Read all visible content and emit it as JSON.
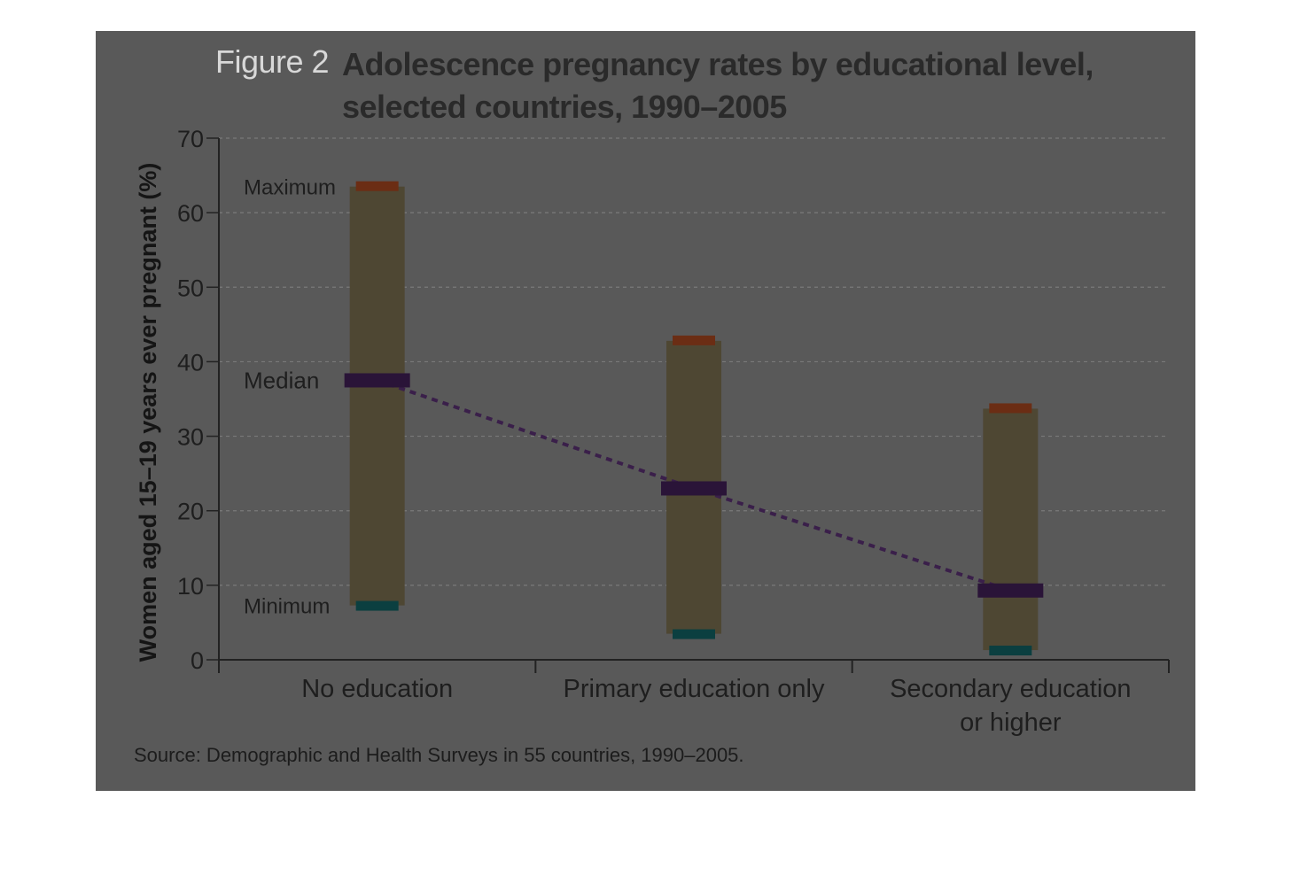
{
  "figure": {
    "prefix": "Figure 2",
    "title_line1": "Adolescence pregnancy rates by educational level,",
    "title_line2": "selected countries, 1990–2005",
    "source": "Source: Demographic and Health Surveys in 55 countries, 1990–2005."
  },
  "colors": {
    "background": "#595959",
    "range_bar": "#4e4733",
    "maximum": "#6b2d14",
    "median": "#2a1438",
    "minimum": "#0b3f40",
    "trend_line": "#3a1f4a",
    "axis": "#222222",
    "grid": "#7a7a7a",
    "tick_label": "#1e1e1e"
  },
  "chart_data": {
    "type": "range",
    "title": "Adolescence pregnancy rates by educational level, selected countries, 1990–2005",
    "ylabel": "Women aged 15–19 years ever pregnant (%)",
    "xlabel": "",
    "ylim": [
      0,
      70
    ],
    "yticks": [
      "0",
      "10",
      "20",
      "30",
      "40",
      "50",
      "60",
      "70"
    ],
    "grid": true,
    "categories": [
      {
        "label_lines": [
          "No education"
        ],
        "max": 63.5,
        "median": 37.5,
        "min": 7.3
      },
      {
        "label_lines": [
          "Primary education only"
        ],
        "max": 42.8,
        "median": 23,
        "min": 3.5
      },
      {
        "label_lines": [
          "Secondary education",
          "or higher"
        ],
        "max": 33.7,
        "median": 9.3,
        "min": 1.3
      }
    ],
    "series": [
      {
        "name": "Maximum",
        "values": [
          63.5,
          42.8,
          33.7
        ]
      },
      {
        "name": "Median",
        "values": [
          37.5,
          23,
          9.3
        ]
      },
      {
        "name": "Minimum",
        "values": [
          7.3,
          3.5,
          1.3
        ]
      }
    ],
    "annotations": [
      "Maximum",
      "Median",
      "Minimum"
    ]
  }
}
